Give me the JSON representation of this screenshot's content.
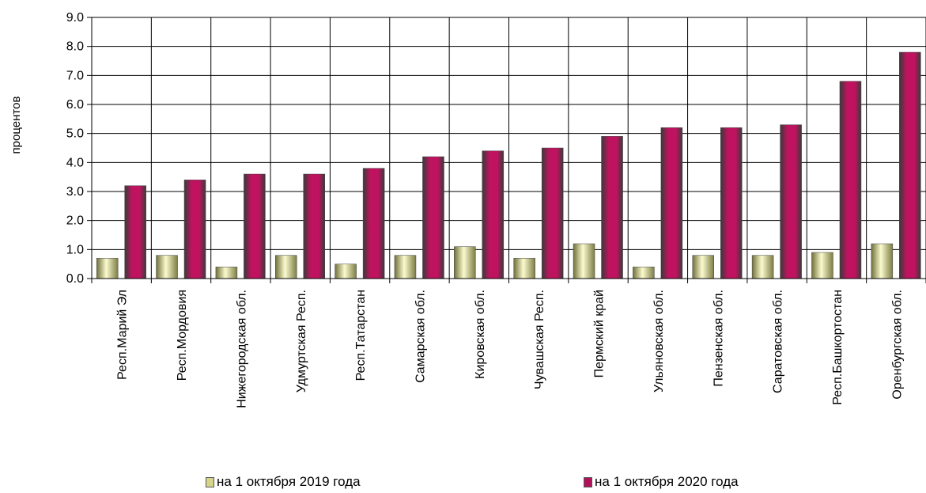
{
  "chart_data": {
    "type": "bar",
    "ylabel": "процентов",
    "ylim": [
      0,
      9
    ],
    "yticks": [
      "0.0",
      "1.0",
      "2.0",
      "3.0",
      "4.0",
      "5.0",
      "6.0",
      "7.0",
      "8.0",
      "9.0"
    ],
    "grid": true,
    "legend_position": "bottom",
    "categories": [
      "Респ.Марий Эл",
      "Респ.Мордовия",
      "Нижегородская обл.",
      "Удмуртская Респ.",
      "Респ.Татарстан",
      "Самарская обл.",
      "Кировская обл.",
      "Чувашская Респ.",
      "Пермский край",
      "Ульяновская обл.",
      "Пензенская обл.",
      "Саратовская обл.",
      "Респ.Башкортостан",
      "Оренбургская обл."
    ],
    "series": [
      {
        "name": "на 1 октября 2019 года",
        "color": "#d6d68a",
        "values": [
          0.7,
          0.8,
          0.4,
          0.8,
          0.5,
          0.8,
          1.1,
          0.7,
          1.2,
          0.4,
          0.8,
          0.8,
          0.9,
          1.2
        ]
      },
      {
        "name": "на 1 октября 2020 года",
        "color": "#b0125a",
        "values": [
          3.2,
          3.4,
          3.6,
          3.6,
          3.8,
          4.2,
          4.4,
          4.5,
          4.9,
          5.2,
          5.2,
          5.3,
          6.8,
          7.8
        ]
      }
    ]
  }
}
